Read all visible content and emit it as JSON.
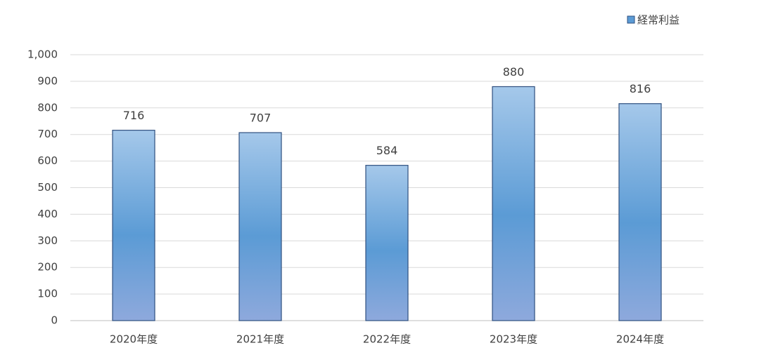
{
  "chart_data": {
    "type": "bar",
    "categories": [
      "2020年度",
      "2021年度",
      "2022年度",
      "2023年度",
      "2024年度"
    ],
    "series": [
      {
        "name": "経常利益",
        "color": "#5b9bd5",
        "values": [
          716,
          707,
          584,
          880,
          816
        ]
      }
    ],
    "ylim": [
      0,
      1000
    ],
    "yticks": [
      0,
      100,
      200,
      300,
      400,
      500,
      600,
      700,
      800,
      900,
      {
        "value": 1000,
        "label": "1,000"
      }
    ],
    "grid": true,
    "legend": "top-right"
  }
}
